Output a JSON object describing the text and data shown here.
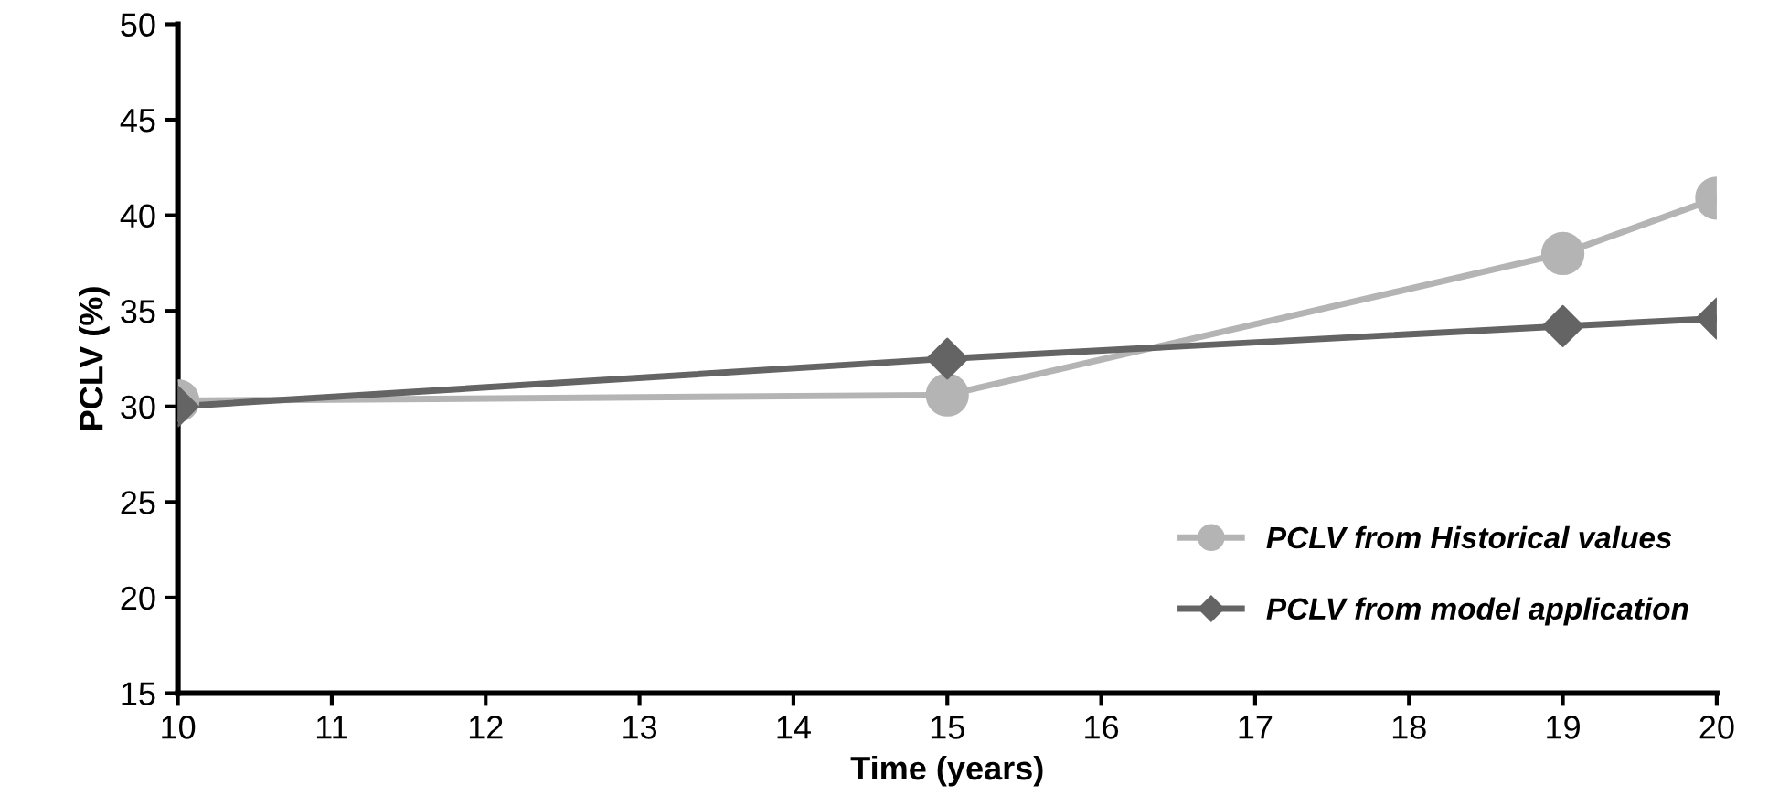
{
  "chart_data": {
    "type": "line",
    "xlabel": "Time (years)",
    "ylabel": "PCLV (%)",
    "xlim": [
      10,
      20
    ],
    "xticks": [
      10,
      11,
      12,
      13,
      14,
      15,
      16,
      17,
      18,
      19,
      20
    ],
    "ylim": [
      15,
      50
    ],
    "yticks": [
      15,
      20,
      25,
      30,
      35,
      40,
      45,
      50
    ],
    "grid": false,
    "legend": "bottom right",
    "series": [
      {
        "name": "PCLV from Historical values",
        "color": "#b4b4b4",
        "x": [
          10,
          15,
          19,
          20
        ],
        "values": [
          30.3,
          30.6,
          38.0,
          40.9
        ],
        "marker": "circle"
      },
      {
        "name": "PCLV from model application",
        "color": "#646464",
        "x": [
          10,
          15,
          19,
          20
        ],
        "values": [
          30.0,
          32.5,
          34.2,
          34.6
        ],
        "marker": "diamond"
      }
    ]
  }
}
